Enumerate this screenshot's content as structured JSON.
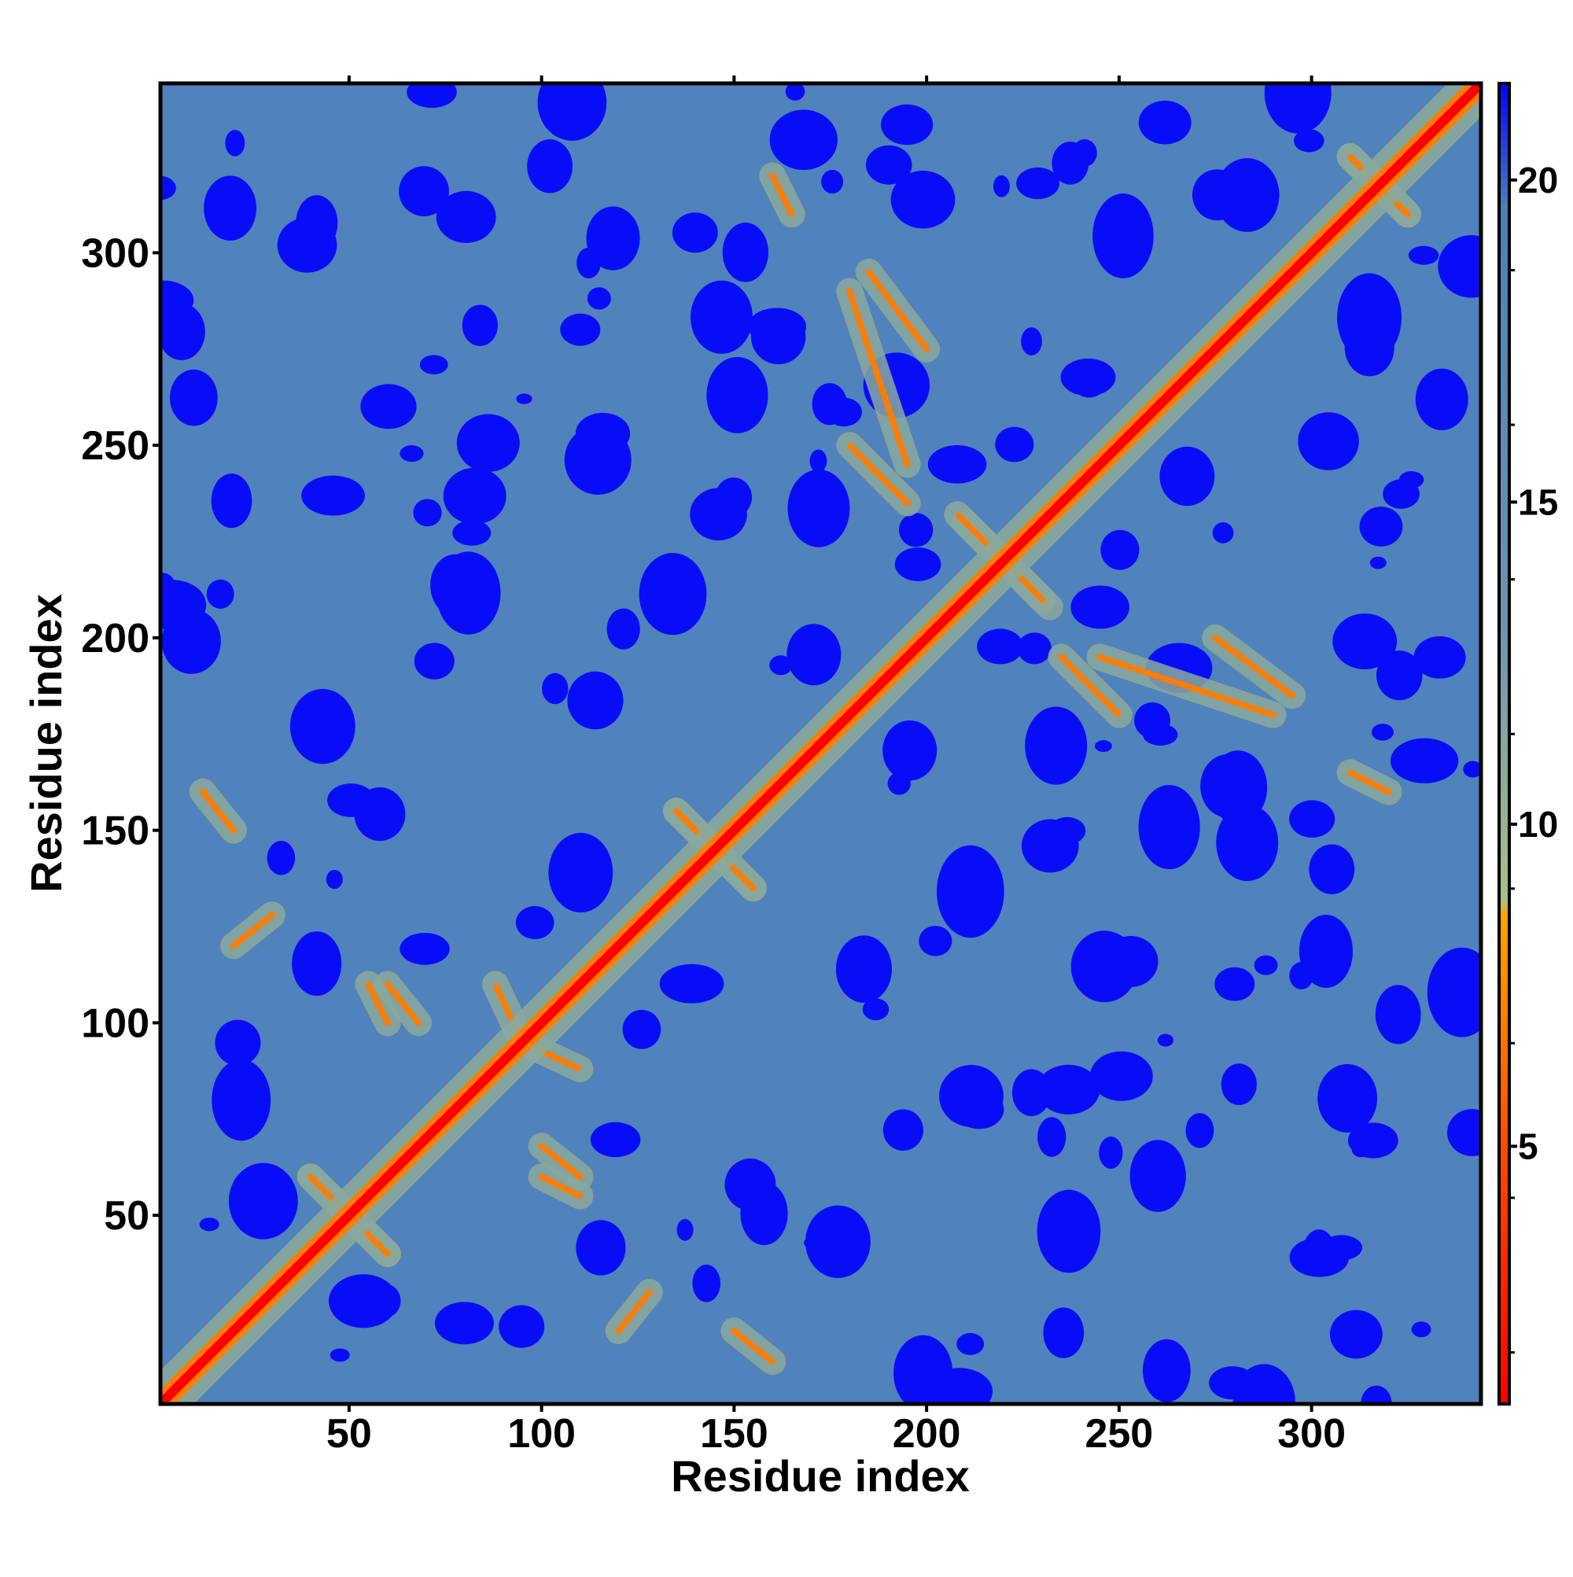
{
  "chart_data": {
    "type": "heatmap",
    "title": "",
    "xlabel": "Residue index",
    "ylabel": "Residue index",
    "xlim": [
      1,
      344
    ],
    "ylim": [
      1,
      344
    ],
    "x_ticks": [
      50,
      100,
      150,
      200,
      250,
      300
    ],
    "y_ticks": [
      50,
      100,
      150,
      200,
      250,
      300
    ],
    "x_tick_labels": [
      "50",
      "100",
      "150",
      "200",
      "250",
      "300"
    ],
    "y_tick_labels": [
      "50",
      "100",
      "150",
      "200",
      "250",
      "300"
    ],
    "colorbar": {
      "range": [
        1,
        21.5
      ],
      "ticks": [
        5,
        10,
        15,
        20
      ],
      "tick_labels": [
        "5",
        "10",
        "15",
        "20"
      ],
      "colors": [
        {
          "value": 1,
          "color": "#ff0000"
        },
        {
          "value": 5,
          "color": "#ff4a00"
        },
        {
          "value": 8.6,
          "color": "#ffa500"
        },
        {
          "value": 8.8,
          "color": "#a8c187"
        },
        {
          "value": 13,
          "color": "#6f93b1"
        },
        {
          "value": 19.6,
          "color": "#4b7fb8"
        },
        {
          "value": 21.5,
          "color": "#0000ff"
        }
      ]
    },
    "matrix_description": "Symmetric residue-residue distance map: near-zero distances along the main diagonal, secondary-structure contacts as orange bands, most pairs at ~19 (steel blue) with scattered >20 (blue) patches.",
    "contact_bands": [
      {
        "from": [
          40,
          60
        ],
        "to": [
          60,
          40
        ]
      },
      {
        "from": [
          95,
          95
        ],
        "to": [
          110,
          88
        ]
      },
      {
        "from": [
          135,
          155
        ],
        "to": [
          155,
          135
        ]
      },
      {
        "from": [
          210,
          230
        ],
        "to": [
          232,
          208
        ]
      },
      {
        "from": [
          195,
          245
        ],
        "to": [
          180,
          290
        ]
      },
      {
        "from": [
          235,
          195
        ],
        "to": [
          250,
          180
        ]
      },
      {
        "from": [
          275,
          200
        ],
        "to": [
          295,
          185
        ]
      },
      {
        "from": [
          310,
          325
        ],
        "to": [
          325,
          310
        ]
      },
      {
        "from": [
          20,
          120
        ],
        "to": [
          30,
          128
        ]
      },
      {
        "from": [
          60,
          110
        ],
        "to": [
          68,
          100
        ]
      },
      {
        "from": [
          100,
          60
        ],
        "to": [
          110,
          55
        ]
      },
      {
        "from": [
          150,
          20
        ],
        "to": [
          160,
          12
        ]
      },
      {
        "from": [
          160,
          320
        ],
        "to": [
          165,
          310
        ]
      }
    ]
  }
}
